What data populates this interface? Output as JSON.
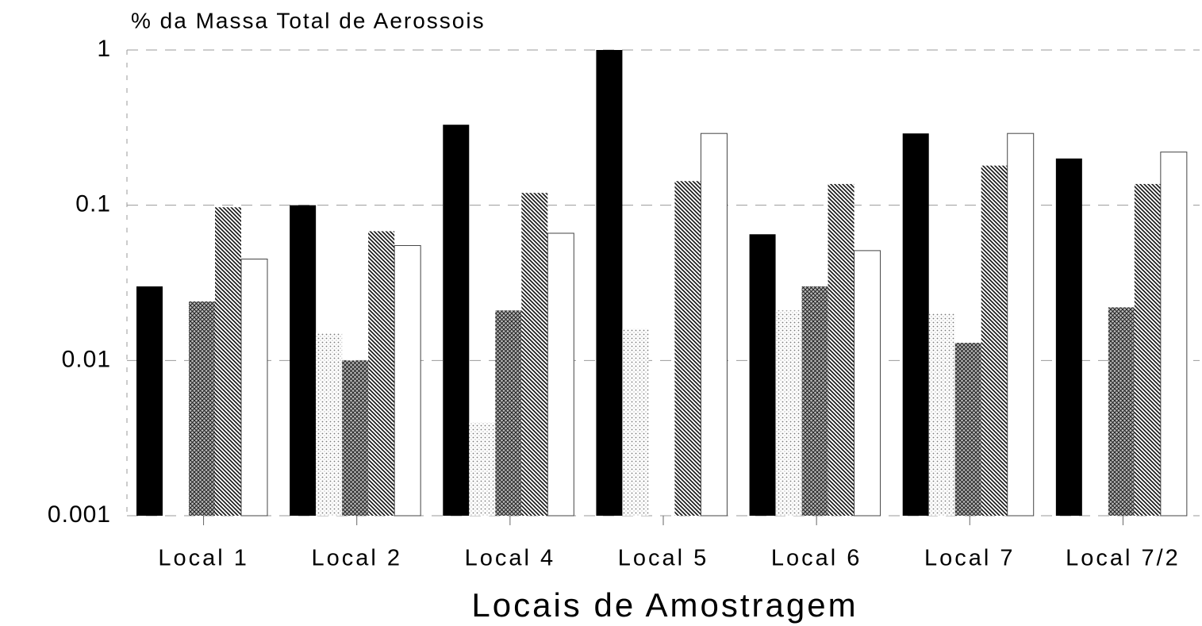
{
  "chart_data": {
    "type": "bar",
    "title": "% da Massa Total de Aerossois",
    "xlabel": "Locais de Amostragem",
    "categories": [
      "Local 1",
      "Local 2",
      "Local 4",
      "Local 5",
      "Local 6",
      "Local 7",
      "Local 7/2"
    ],
    "series": [
      {
        "color": "#000000",
        "pattern": "solid",
        "values": [
          0.03,
          0.1,
          0.33,
          1.0,
          0.065,
          0.29,
          0.2
        ]
      },
      {
        "color": "#bbbbbb",
        "pattern": "dots",
        "values": [
          null,
          0.015,
          0.004,
          0.016,
          0.021,
          0.02,
          null
        ]
      },
      {
        "color": "#555555",
        "pattern": "crosshatch",
        "values": [
          0.024,
          0.01,
          0.021,
          null,
          0.03,
          0.013,
          0.022
        ]
      },
      {
        "color": "#333333",
        "pattern": "hatch",
        "values": [
          0.097,
          0.068,
          0.12,
          0.143,
          0.137,
          0.18,
          0.137
        ]
      },
      {
        "color": "#ffffff",
        "pattern": "none",
        "values": [
          0.045,
          0.055,
          0.066,
          0.29,
          0.051,
          0.29,
          0.22
        ]
      }
    ],
    "log_scale": true,
    "ylim": [
      0.001,
      1
    ],
    "yticks": [
      0.001,
      0.01,
      0.1,
      1
    ],
    "grid": true
  }
}
